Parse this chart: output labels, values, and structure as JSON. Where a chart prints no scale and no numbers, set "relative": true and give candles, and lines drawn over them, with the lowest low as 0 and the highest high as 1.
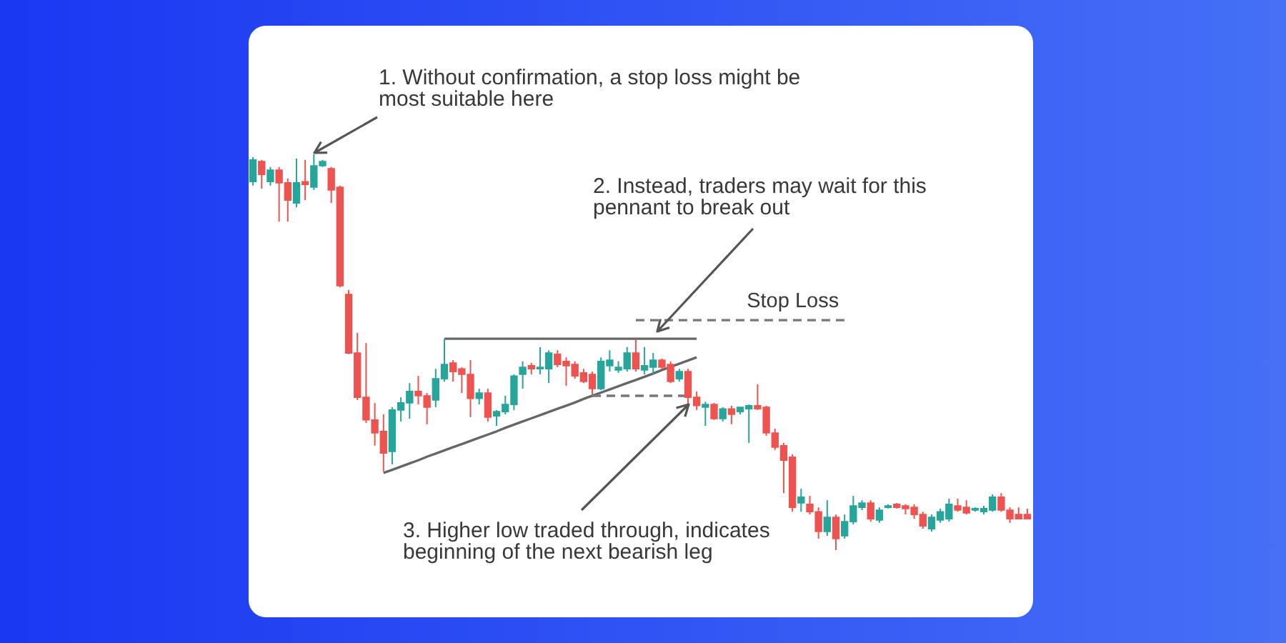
{
  "chart_data": {
    "type": "candlestick",
    "relative": true,
    "categories": [
      null,
      null,
      null,
      null,
      null,
      null,
      null,
      null,
      null,
      null,
      null,
      null,
      null,
      null,
      null,
      null,
      null,
      null,
      null,
      null,
      null,
      null,
      null,
      null,
      null,
      null,
      null,
      null,
      null,
      null,
      null,
      null,
      null,
      null,
      null,
      null,
      null,
      null,
      null,
      null,
      null,
      null,
      null,
      null,
      null,
      null,
      null,
      null,
      null,
      null,
      null,
      null,
      null,
      null,
      null,
      null,
      null,
      null,
      null,
      null,
      null,
      null,
      null,
      null,
      null,
      null,
      null,
      null,
      null,
      null,
      null,
      null,
      null,
      null,
      null,
      null,
      null,
      null,
      null,
      null,
      null,
      null,
      null,
      null,
      null,
      null,
      null,
      null,
      null,
      null
    ],
    "ohlc": [
      [
        0.931,
        0.993,
        0.921,
        0.986
      ],
      [
        0.982,
        0.986,
        0.913,
        0.949
      ],
      [
        0.931,
        0.968,
        0.921,
        0.96
      ],
      [
        0.96,
        0.968,
        0.83,
        0.928
      ],
      [
        0.928,
        0.939,
        0.83,
        0.884
      ],
      [
        0.877,
        0.989,
        0.866,
        0.928
      ],
      [
        0.931,
        0.986,
        0.884,
        0.924
      ],
      [
        0.917,
        1,
        0.91,
        0.971
      ],
      [
        0.971,
        0.986,
        0.968,
        0.982
      ],
      [
        0.964,
        0.968,
        0.877,
        0.91
      ],
      [
        0.917,
        0.921,
        0.664,
        0.668
      ],
      [
        0.646,
        0.657,
        0.495,
        0.498
      ],
      [
        0.498,
        0.549,
        0.379,
        0.386
      ],
      [
        0.386,
        0.523,
        0.321,
        0.329
      ],
      [
        0.329,
        0.372,
        0.264,
        0.296
      ],
      [
        0.3,
        0.343,
        0.199,
        0.245
      ],
      [
        0.249,
        0.361,
        0.217,
        0.354
      ],
      [
        0.354,
        0.386,
        0.325,
        0.372
      ],
      [
        0.372,
        0.422,
        0.332,
        0.401
      ],
      [
        0.401,
        0.44,
        0.368,
        0.39
      ],
      [
        0.39,
        0.397,
        0.318,
        0.361
      ],
      [
        0.379,
        0.458,
        0.361,
        0.433
      ],
      [
        0.433,
        0.534,
        0.426,
        0.469
      ],
      [
        0.473,
        0.48,
        0.426,
        0.451
      ],
      [
        0.458,
        0.462,
        0.397,
        0.444
      ],
      [
        0.444,
        0.48,
        0.336,
        0.383
      ],
      [
        0.383,
        0.408,
        0.368,
        0.397
      ],
      [
        0.397,
        0.408,
        0.325,
        0.336
      ],
      [
        0.339,
        0.354,
        0.314,
        0.35
      ],
      [
        0.35,
        0.39,
        0.343,
        0.368
      ],
      [
        0.368,
        0.444,
        0.354,
        0.44
      ],
      [
        0.444,
        0.477,
        0.408,
        0.462
      ],
      [
        0.466,
        0.473,
        0.444,
        0.458
      ],
      [
        0.458,
        0.513,
        0.444,
        0.462
      ],
      [
        0.458,
        0.505,
        0.422,
        0.498
      ],
      [
        0.495,
        0.505,
        0.462,
        0.469
      ],
      [
        0.477,
        0.487,
        0.415,
        0.466
      ],
      [
        0.469,
        0.477,
        0.433,
        0.44
      ],
      [
        0.448,
        0.458,
        0.422,
        0.426
      ],
      [
        0.444,
        0.451,
        0.39,
        0.408
      ],
      [
        0.408,
        0.487,
        0.404,
        0.477
      ],
      [
        0.466,
        0.505,
        0.451,
        0.48
      ],
      [
        0.455,
        0.477,
        0.448,
        0.462
      ],
      [
        0.458,
        0.513,
        0.451,
        0.498
      ],
      [
        0.498,
        0.534,
        0.451,
        0.458
      ],
      [
        0.455,
        0.513,
        0.444,
        0.466
      ],
      [
        0.462,
        0.498,
        0.444,
        0.48
      ],
      [
        0.48,
        0.484,
        0.458,
        0.462
      ],
      [
        0.469,
        0.477,
        0.422,
        0.426
      ],
      [
        0.433,
        0.458,
        0.426,
        0.451
      ],
      [
        0.451,
        0.458,
        0.368,
        0.386
      ],
      [
        0.386,
        0.401,
        0.354,
        0.365
      ],
      [
        0.361,
        0.375,
        0.314,
        0.368
      ],
      [
        0.368,
        0.372,
        0.329,
        0.332
      ],
      [
        0.332,
        0.361,
        0.325,
        0.357
      ],
      [
        0.357,
        0.365,
        0.318,
        0.343
      ],
      [
        0.35,
        0.361,
        0.343,
        0.361
      ],
      [
        0.357,
        0.368,
        0.271,
        0.365
      ],
      [
        0.365,
        0.419,
        0.354,
        0.357
      ],
      [
        0.361,
        0.365,
        0.289,
        0.296
      ],
      [
        0.296,
        0.307,
        0.253,
        0.26
      ],
      [
        0.264,
        0.271,
        0.144,
        0.227
      ],
      [
        0.235,
        0.242,
        0.097,
        0.108
      ],
      [
        0.119,
        0.155,
        0.097,
        0.134
      ],
      [
        0.116,
        0.137,
        0.09,
        0.097
      ],
      [
        0.097,
        0.108,
        0.029,
        0.047
      ],
      [
        0.047,
        0.126,
        0.036,
        0.083
      ],
      [
        0.083,
        0.09,
        0,
        0.029
      ],
      [
        0.036,
        0.09,
        0.029,
        0.072
      ],
      [
        0.072,
        0.137,
        0.065,
        0.112
      ],
      [
        0.108,
        0.126,
        0.101,
        0.119
      ],
      [
        0.119,
        0.126,
        0.072,
        0.079
      ],
      [
        0.076,
        0.108,
        0.069,
        0.101
      ],
      [
        0.108,
        0.116,
        0.105,
        0.112
      ],
      [
        0.116,
        0.119,
        0.105,
        0.108
      ],
      [
        0.112,
        0.116,
        0.09,
        0.105
      ],
      [
        0.108,
        0.116,
        0.079,
        0.09
      ],
      [
        0.09,
        0.097,
        0.054,
        0.061
      ],
      [
        0.054,
        0.09,
        0.047,
        0.083
      ],
      [
        0.076,
        0.105,
        0.069,
        0.097
      ],
      [
        0.079,
        0.13,
        0.072,
        0.116
      ],
      [
        0.112,
        0.13,
        0.097,
        0.101
      ],
      [
        0.108,
        0.126,
        0.09,
        0.094
      ],
      [
        0.101,
        0.108,
        0.097,
        0.105
      ],
      [
        0.097,
        0.112,
        0.09,
        0.105
      ],
      [
        0.101,
        0.141,
        0.097,
        0.134
      ],
      [
        0.134,
        0.144,
        0.097,
        0.101
      ],
      [
        0.101,
        0.108,
        0.069,
        0.079
      ],
      [
        0.09,
        0.108,
        0.079,
        0.079
      ],
      [
        0.09,
        0.105,
        0.079,
        0.079
      ]
    ],
    "colors": [
      "#26a69a",
      "#ef5350",
      "#26a69a",
      "#ef5350",
      "#ef5350",
      "#26a69a",
      "#ef5350",
      "#26a69a",
      "#26a69a",
      "#ef5350",
      "#ef5350",
      "#ef5350",
      "#ef5350",
      "#ef5350",
      "#ef5350",
      "#ef5350",
      "#26a69a",
      "#26a69a",
      "#26a69a",
      "#ef5350",
      "#ef5350",
      "#26a69a",
      "#26a69a",
      "#ef5350",
      "#ef5350",
      "#ef5350",
      "#26a69a",
      "#ef5350",
      "#26a69a",
      "#26a69a",
      "#26a69a",
      "#26a69a",
      "#ef5350",
      "#26a69a",
      "#26a69a",
      "#ef5350",
      "#ef5350",
      "#ef5350",
      "#ef5350",
      "#ef5350",
      "#26a69a",
      "#26a69a",
      "#26a69a",
      "#26a69a",
      "#ef5350",
      "#26a69a",
      "#26a69a",
      "#ef5350",
      "#ef5350",
      "#26a69a",
      "#ef5350",
      "#ef5350",
      "#26a69a",
      "#ef5350",
      "#26a69a",
      "#ef5350",
      "#26a69a",
      "#26a69a",
      "#ef5350",
      "#ef5350",
      "#ef5350",
      "#ef5350",
      "#ef5350",
      "#26a69a",
      "#ef5350",
      "#ef5350",
      "#26a69a",
      "#ef5350",
      "#26a69a",
      "#26a69a",
      "#26a69a",
      "#ef5350",
      "#26a69a",
      "#26a69a",
      "#ef5350",
      "#ef5350",
      "#ef5350",
      "#ef5350",
      "#26a69a",
      "#26a69a",
      "#26a69a",
      "#ef5350",
      "#ef5350",
      "#26a69a",
      "#26a69a",
      "#26a69a",
      "#ef5350",
      "#ef5350",
      "#ef5350",
      "#ef5350"
    ],
    "series": [
      {
        "type": "line",
        "color": "#666666",
        "line_style": "solid",
        "values": [
          null,
          null,
          null,
          null,
          null,
          null,
          null,
          null,
          null,
          null,
          null,
          null,
          null,
          null,
          null,
          0.195,
          0.203,
          0.211,
          0.219,
          0.227,
          0.236,
          0.244,
          0.252,
          0.26,
          0.268,
          0.276,
          0.284,
          0.292,
          0.3,
          0.309,
          0.317,
          0.325,
          0.333,
          0.341,
          0.349,
          0.357,
          0.365,
          0.373,
          0.382,
          0.39,
          0.398,
          0.406,
          0.414,
          0.422,
          0.43,
          0.438,
          0.446,
          0.455,
          0.463,
          0.471,
          0.479,
          0.487,
          null,
          null,
          null,
          null,
          null,
          null,
          null,
          null,
          null,
          null,
          null,
          null,
          null,
          null,
          null,
          null,
          null,
          null,
          null,
          null,
          null,
          null,
          null,
          null,
          null,
          null,
          null,
          null,
          null,
          null,
          null,
          null,
          null,
          null,
          null,
          null,
          null,
          null
        ]
      },
      {
        "type": "line",
        "color": "#666666",
        "line_style": "solid",
        "values": [
          null,
          null,
          null,
          null,
          null,
          null,
          null,
          null,
          null,
          null,
          null,
          null,
          null,
          null,
          null,
          null,
          null,
          null,
          null,
          null,
          null,
          null,
          0.534,
          0.534,
          0.534,
          0.534,
          0.534,
          0.534,
          0.534,
          0.534,
          0.534,
          0.534,
          0.534,
          0.534,
          0.534,
          0.534,
          0.534,
          0.534,
          0.534,
          0.534,
          0.534,
          0.534,
          0.534,
          0.534,
          0.534,
          0.534,
          0.534,
          0.534,
          0.534,
          0.534,
          0.534,
          0.534,
          null,
          null,
          null,
          null,
          null,
          null,
          null,
          null,
          null,
          null,
          null,
          null,
          null,
          null,
          null,
          null,
          null,
          null,
          null,
          null,
          null,
          null,
          null,
          null,
          null,
          null,
          null,
          null,
          null,
          null,
          null,
          null,
          null,
          null,
          null,
          null,
          null,
          null
        ]
      },
      {
        "type": "line",
        "name": "Stop Loss",
        "color": "#777777",
        "line_style": "dashed",
        "values": [
          null,
          null,
          null,
          null,
          null,
          null,
          null,
          null,
          null,
          null,
          null,
          null,
          null,
          null,
          null,
          null,
          null,
          null,
          null,
          null,
          null,
          null,
          null,
          null,
          null,
          null,
          null,
          null,
          null,
          null,
          null,
          null,
          null,
          null,
          null,
          null,
          null,
          null,
          null,
          null,
          null,
          null,
          null,
          null,
          0.581,
          0.581,
          0.581,
          0.581,
          0.581,
          0.581,
          0.581,
          0.581,
          0.581,
          0.581,
          0.581,
          0.581,
          0.581,
          0.581,
          0.581,
          0.581,
          0.581,
          0.581,
          0.581,
          0.581,
          0.581,
          0.581,
          0.581,
          0.581,
          0.581,
          null,
          null,
          null,
          null,
          null,
          null,
          null,
          null,
          null,
          null,
          null,
          null,
          null,
          null,
          null,
          null,
          null,
          null,
          null,
          null,
          null
        ]
      },
      {
        "type": "line",
        "color": "#777777",
        "line_style": "dashed",
        "values": [
          null,
          null,
          null,
          null,
          null,
          null,
          null,
          null,
          null,
          null,
          null,
          null,
          null,
          null,
          null,
          null,
          null,
          null,
          null,
          null,
          null,
          null,
          null,
          null,
          null,
          null,
          null,
          null,
          null,
          null,
          null,
          null,
          null,
          null,
          null,
          null,
          null,
          null,
          null,
          0.39,
          0.39,
          0.39,
          0.39,
          0.39,
          0.39,
          0.39,
          0.39,
          0.39,
          0.39,
          0.39,
          0.39,
          null,
          null,
          null,
          null,
          null,
          null,
          null,
          null,
          null,
          null,
          null,
          null,
          null,
          null,
          null,
          null,
          null,
          null,
          null,
          null,
          null,
          null,
          null,
          null,
          null,
          null,
          null,
          null,
          null,
          null,
          null,
          null,
          null,
          null,
          null,
          null,
          null,
          null,
          null
        ]
      }
    ],
    "annotations": [
      "1. Without confirmation, a stop loss might be\nmost suitable here",
      "2. Instead, traders may wait for this\npennant to break out",
      "3. Higher low traded through, indicates\nbeginning of the next bearish leg"
    ]
  }
}
